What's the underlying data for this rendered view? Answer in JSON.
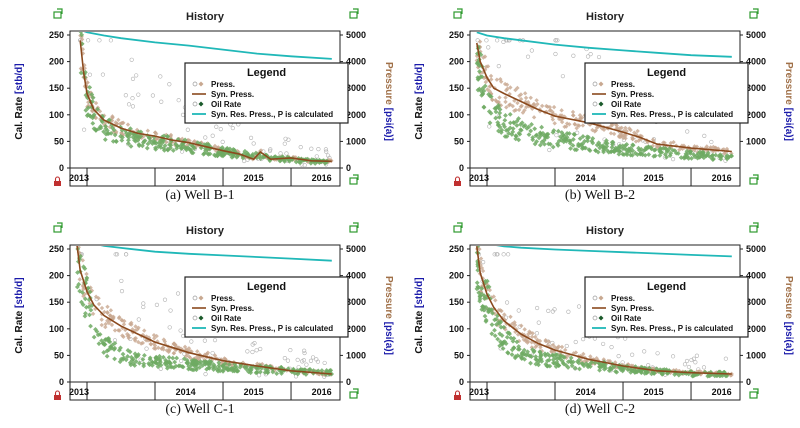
{
  "chart_data": [
    {
      "type": "line",
      "caption": "(a) Well B-1",
      "title": "History",
      "ylabel_left_prefix": "Cal. Rate ",
      "ylabel_left_unit": "[stb/d]",
      "ylabel_right_prefix": "Pressure ",
      "ylabel_right_unit": "[psi(a)]",
      "xlim": [
        2012.75,
        2016.72
      ],
      "ylim_left": [
        0,
        250
      ],
      "ylim_right": [
        0,
        5000
      ],
      "xticks": [
        "2013",
        "2014",
        "2015",
        "2016"
      ],
      "yticks_left": [
        0,
        50,
        100,
        150,
        200,
        250
      ],
      "yticks_right": [
        0,
        1000,
        2000,
        3000,
        4000,
        5000
      ],
      "legend": {
        "title": "Legend",
        "entries": [
          "Press.",
          "Syn. Press.",
          "Oil Rate",
          "Syn. Res. Press., P is calculated"
        ]
      },
      "series": [
        {
          "name": "Syn. Res. Press., P is calculated",
          "axis": "right",
          "x": [
            2012.9,
            2013.0,
            2013.25,
            2013.5,
            2014.0,
            2014.5,
            2015.0,
            2015.5,
            2016.0,
            2016.6
          ],
          "y": [
            5200,
            5100,
            4980,
            4880,
            4720,
            4600,
            4450,
            4300,
            4200,
            4100
          ]
        },
        {
          "name": "Syn. Press.",
          "axis": "right",
          "x": [
            2012.9,
            2012.95,
            2013.0,
            2013.1,
            2013.25,
            2013.5,
            2013.75,
            2014.0,
            2014.25,
            2014.5,
            2015.0,
            2015.25,
            2015.45,
            2015.55,
            2015.7,
            2016.0,
            2016.3,
            2016.6
          ],
          "y": [
            4800,
            3600,
            2800,
            2200,
            1800,
            1500,
            1300,
            1200,
            1050,
            950,
            650,
            520,
            330,
            600,
            330,
            380,
            270,
            250
          ]
        },
        {
          "name": "Oil Rate",
          "axis": "left",
          "x": [
            2012.9,
            2012.95,
            2013.0,
            2013.1,
            2013.25,
            2013.5,
            2013.75,
            2014.0,
            2014.25,
            2014.5,
            2015.0,
            2015.5,
            2016.0,
            2016.6
          ],
          "y": [
            230,
            170,
            130,
            100,
            75,
            62,
            55,
            50,
            45,
            40,
            30,
            22,
            15,
            10
          ]
        }
      ]
    },
    {
      "type": "line",
      "caption": "(b) Well B-2",
      "title": "History",
      "ylabel_left_prefix": "Cal. Rate ",
      "ylabel_left_unit": "[stb/d]",
      "ylabel_right_prefix": "Pressure ",
      "ylabel_right_unit": "[psi(a)]",
      "xlim": [
        2012.75,
        2016.72
      ],
      "ylim_left": [
        0,
        250
      ],
      "ylim_right": [
        0,
        5000
      ],
      "xticks": [
        "2013",
        "2014",
        "2015",
        "2016"
      ],
      "yticks_left": [
        0,
        50,
        100,
        150,
        200,
        250
      ],
      "yticks_right": [
        1000,
        2000,
        3000,
        4000,
        5000
      ],
      "legend": {
        "title": "Legend",
        "entries": [
          "Press.",
          "Syn. Press.",
          "Oil Rate",
          "Syn. Res. Press., P is calculated"
        ]
      },
      "series": [
        {
          "name": "Syn. Res. Press., P is calculated",
          "axis": "right",
          "x": [
            2012.85,
            2013.0,
            2013.25,
            2013.5,
            2014.0,
            2014.5,
            2015.0,
            2015.5,
            2016.0,
            2016.6
          ],
          "y": [
            5100,
            4980,
            4880,
            4800,
            4640,
            4520,
            4420,
            4330,
            4240,
            4180
          ]
        },
        {
          "name": "Syn. Press.",
          "axis": "right",
          "x": [
            2012.85,
            2012.9,
            2013.0,
            2013.1,
            2013.25,
            2013.5,
            2013.75,
            2014.0,
            2014.5,
            2015.0,
            2015.25,
            2015.5,
            2016.0,
            2016.6
          ],
          "y": [
            4700,
            4000,
            3400,
            3000,
            2800,
            2500,
            2200,
            1950,
            1700,
            1350,
            1150,
            900,
            750,
            620
          ]
        },
        {
          "name": "Oil Rate",
          "axis": "left",
          "x": [
            2012.85,
            2012.9,
            2013.0,
            2013.1,
            2013.25,
            2013.5,
            2013.75,
            2014.0,
            2014.5,
            2015.0,
            2015.5,
            2016.0,
            2016.6
          ],
          "y": [
            210,
            170,
            130,
            100,
            82,
            70,
            62,
            55,
            45,
            35,
            30,
            25,
            18
          ]
        }
      ]
    },
    {
      "type": "line",
      "caption": "(c) Well C-1",
      "title": "History",
      "ylabel_left_prefix": "Cal. Rate ",
      "ylabel_left_unit": "[stb/d]",
      "ylabel_right_prefix": "Pressure ",
      "ylabel_right_unit": "[psi(a)]",
      "xlim": [
        2012.75,
        2016.72
      ],
      "ylim_left": [
        0,
        250
      ],
      "ylim_right": [
        0,
        5000
      ],
      "xticks": [
        "2013",
        "2014",
        "2015",
        "2016"
      ],
      "yticks_left": [
        0,
        50,
        100,
        150,
        200,
        250
      ],
      "yticks_right": [
        0,
        1000,
        2000,
        3000,
        4000,
        5000
      ],
      "legend": {
        "title": "Legend",
        "entries": [
          "Press.",
          "Syn. Press.",
          "Oil Rate",
          "Syn. Res. Press., P is calculated"
        ]
      },
      "series": [
        {
          "name": "Syn. Res. Press., P is calculated",
          "axis": "right",
          "x": [
            2012.85,
            2013.0,
            2013.25,
            2013.5,
            2014.0,
            2014.5,
            2015.0,
            2015.5,
            2016.0,
            2016.6
          ],
          "y": [
            5350,
            5250,
            5120,
            5040,
            4900,
            4820,
            4760,
            4700,
            4640,
            4560
          ]
        },
        {
          "name": "Syn. Press.",
          "axis": "right",
          "x": [
            2012.85,
            2012.9,
            2013.0,
            2013.1,
            2013.25,
            2013.5,
            2013.75,
            2014.0,
            2014.5,
            2015.0,
            2015.5,
            2016.0,
            2016.6
          ],
          "y": [
            5200,
            4200,
            3400,
            2900,
            2500,
            2100,
            1800,
            1500,
            1100,
            800,
            600,
            420,
            300
          ]
        },
        {
          "name": "Oil Rate",
          "axis": "left",
          "x": [
            2012.85,
            2012.9,
            2013.0,
            2013.1,
            2013.25,
            2013.5,
            2013.75,
            2014.0,
            2014.5,
            2015.0,
            2015.5,
            2016.0,
            2016.6
          ],
          "y": [
            260,
            200,
            150,
            110,
            70,
            50,
            42,
            38,
            33,
            28,
            24,
            20,
            18
          ]
        }
      ]
    },
    {
      "type": "line",
      "caption": "(d) Well C-2",
      "title": "History",
      "ylabel_left_prefix": "Cal. Rate ",
      "ylabel_left_unit": "[stb/d]",
      "ylabel_right_prefix": "Pressure ",
      "ylabel_right_unit": "[psi(a)]",
      "xlim": [
        2012.75,
        2016.72
      ],
      "ylim_left": [
        0,
        250
      ],
      "ylim_right": [
        0,
        5000
      ],
      "xticks": [
        "2013",
        "2014",
        "2015",
        "2016"
      ],
      "yticks_left": [
        0,
        50,
        100,
        150,
        200,
        250
      ],
      "yticks_right": [
        0,
        1000,
        2000,
        3000,
        4000,
        5000
      ],
      "legend": {
        "title": "Legend",
        "entries": [
          "Press.",
          "Syn. Press.",
          "Oil Rate",
          "Syn. Res. Press., P is calculated"
        ]
      },
      "series": [
        {
          "name": "Syn. Res. Press., P is calculated",
          "axis": "right",
          "x": [
            2012.85,
            2013.0,
            2013.25,
            2013.5,
            2014.0,
            2014.5,
            2015.0,
            2015.5,
            2016.0,
            2016.6
          ],
          "y": [
            5300,
            5200,
            5100,
            5050,
            4980,
            4930,
            4880,
            4830,
            4780,
            4720
          ]
        },
        {
          "name": "Syn. Press.",
          "axis": "right",
          "x": [
            2012.85,
            2012.9,
            2013.0,
            2013.1,
            2013.25,
            2013.5,
            2013.75,
            2014.0,
            2014.5,
            2015.0,
            2015.5,
            2016.0,
            2016.6
          ],
          "y": [
            5100,
            4100,
            3300,
            2800,
            2300,
            1800,
            1450,
            1200,
            850,
            600,
            420,
            350,
            300
          ]
        },
        {
          "name": "Oil Rate",
          "axis": "left",
          "x": [
            2012.85,
            2012.9,
            2013.0,
            2013.1,
            2013.25,
            2013.5,
            2013.75,
            2014.0,
            2014.5,
            2015.0,
            2015.5,
            2016.0,
            2016.6
          ],
          "y": [
            235,
            190,
            150,
            110,
            80,
            55,
            45,
            40,
            32,
            25,
            20,
            16,
            14
          ]
        }
      ]
    }
  ],
  "colors": {
    "res_pressure": "#20b8b8",
    "syn_pressure": "#8b4a1e",
    "press_points": "#c8a890",
    "oil_rate": "#6faa63",
    "oil_rate_dark": "#1a5a2a",
    "left_label_unit": "#1a1aaa",
    "right_label_prefix": "#a07048",
    "right_label_unit": "#1a1aaa",
    "corner_icon": "#2e9a2e",
    "lock_icon": "#c03030"
  }
}
